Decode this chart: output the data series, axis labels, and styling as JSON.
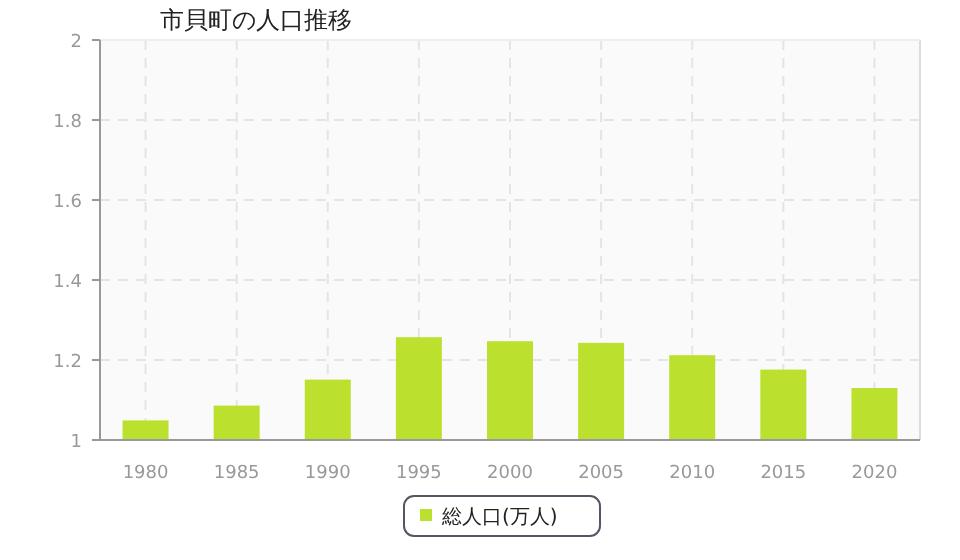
{
  "chart_data": {
    "type": "bar",
    "title": "市貝町の人口推移",
    "categories": [
      "1980",
      "1985",
      "1990",
      "1995",
      "2000",
      "2005",
      "2010",
      "2015",
      "2020"
    ],
    "series": [
      {
        "name": "総人口(万人)",
        "color": "#bbe12e",
        "values": [
          1.049,
          1.086,
          1.151,
          1.257,
          1.247,
          1.243,
          1.212,
          1.176,
          1.13
        ]
      }
    ],
    "ylim": [
      1,
      2
    ],
    "yticks": [
      1,
      1.2,
      1.4,
      1.6,
      1.8,
      2
    ],
    "grid": true,
    "legend": "bottom"
  }
}
